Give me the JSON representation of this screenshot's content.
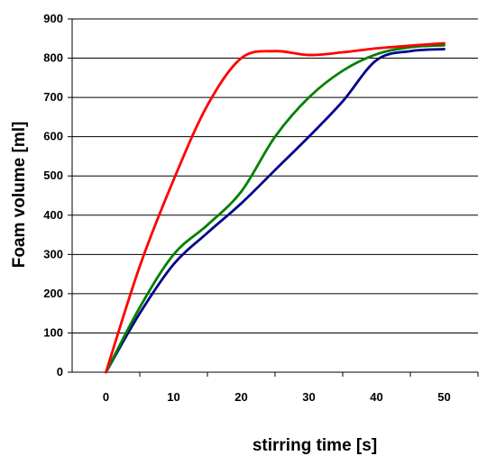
{
  "chart_data": {
    "type": "line",
    "title": "",
    "xlabel": "stirring time [s]",
    "ylabel": "Foam volume [ml]",
    "xlim": [
      -5,
      55
    ],
    "ylim": [
      0,
      900
    ],
    "x_ticks": [
      0,
      10,
      20,
      30,
      40,
      50
    ],
    "y_ticks": [
      0,
      100,
      200,
      300,
      400,
      500,
      600,
      700,
      800,
      900
    ],
    "x_tick_labels": [
      "0",
      "10",
      "20",
      "30",
      "40",
      "50"
    ],
    "y_tick_labels": [
      "0",
      "100",
      "200",
      "300",
      "400",
      "500",
      "600",
      "700",
      "800",
      "900"
    ],
    "grid": "horizontal",
    "legend": "none",
    "series": [
      {
        "color": "#ff0000",
        "x": [
          0,
          5,
          10,
          15,
          20,
          25,
          30,
          35,
          40,
          45,
          50
        ],
        "y": [
          0,
          270,
          490,
          680,
          800,
          818,
          808,
          815,
          825,
          832,
          838
        ]
      },
      {
        "color": "#008000",
        "x": [
          0,
          5,
          10,
          15,
          20,
          25,
          30,
          35,
          40,
          45,
          50
        ],
        "y": [
          0,
          165,
          300,
          375,
          460,
          600,
          700,
          768,
          810,
          828,
          833
        ]
      },
      {
        "color": "#00008b",
        "x": [
          0,
          5,
          10,
          15,
          20,
          25,
          30,
          35,
          40,
          45,
          50
        ],
        "y": [
          0,
          150,
          275,
          355,
          430,
          515,
          600,
          690,
          795,
          818,
          823
        ]
      }
    ]
  }
}
